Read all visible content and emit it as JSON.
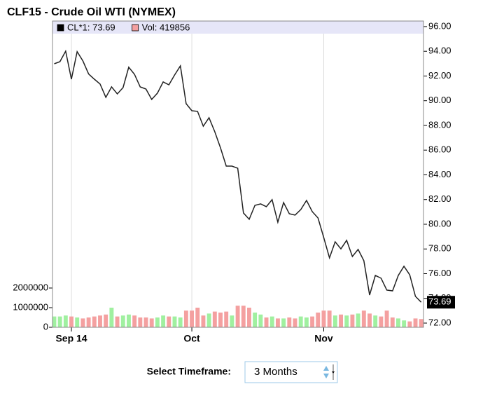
{
  "chart_data": {
    "type": "line",
    "title": "CLF15 - Crude Oil WTI (NYMEX)",
    "x": [
      0,
      1,
      2,
      3,
      4,
      5,
      6,
      7,
      8,
      9,
      10,
      11,
      12,
      13,
      14,
      15,
      16,
      17,
      18,
      19,
      20,
      21,
      22,
      23,
      24,
      25,
      26,
      27,
      28,
      29,
      30,
      31,
      32,
      33,
      34,
      35,
      36,
      37,
      38,
      39,
      40,
      41,
      42,
      43,
      44,
      45,
      46,
      47,
      48,
      49,
      50,
      51,
      52,
      53,
      54,
      55,
      56,
      57,
      58,
      59,
      60,
      61,
      62,
      63,
      64
    ],
    "xlim": [
      -0.3,
      64.4
    ],
    "xticks": [
      {
        "value": 3,
        "label": "Sep 14"
      },
      {
        "value": 24,
        "label": "Oct"
      },
      {
        "value": 47,
        "label": "Nov"
      }
    ],
    "ylim": [
      71.66,
      96.45
    ],
    "yticks": [
      {
        "value": 72,
        "label": "72.00"
      },
      {
        "value": 74,
        "label": "74.00"
      },
      {
        "value": 76,
        "label": "76.00"
      },
      {
        "value": 78,
        "label": "78.00"
      },
      {
        "value": 80,
        "label": "80.00"
      },
      {
        "value": 82,
        "label": "82.00"
      },
      {
        "value": 84,
        "label": "84.00"
      },
      {
        "value": 86,
        "label": "86.00"
      },
      {
        "value": 88,
        "label": "88.00"
      },
      {
        "value": 90,
        "label": "90.00"
      },
      {
        "value": 92,
        "label": "92.00"
      },
      {
        "value": 94,
        "label": "94.00"
      },
      {
        "value": 96,
        "label": "96.00"
      }
    ],
    "y2lim": [
      0,
      15600000
    ],
    "y2ticks": [
      0,
      1000000,
      2000000
    ],
    "y_marker": {
      "value": 73.69,
      "label": "73.69"
    },
    "grid": "x",
    "series": [
      {
        "name": "CL*1: 73.69",
        "color": "#222222",
        "legend_color": "#000000",
        "values": [
          92.99,
          93.16,
          94.01,
          91.74,
          93.97,
          93.22,
          92.16,
          91.74,
          91.35,
          90.27,
          91.12,
          90.55,
          91.06,
          92.71,
          92.14,
          91.12,
          90.95,
          90.1,
          90.61,
          91.52,
          91.29,
          92.09,
          92.82,
          89.76,
          89.19,
          89.14,
          87.94,
          88.62,
          87.49,
          86.18,
          84.71,
          84.71,
          84.54,
          80.91,
          80.4,
          81.53,
          81.65,
          81.42,
          81.99,
          80.17,
          81.76,
          80.85,
          80.74,
          81.19,
          81.93,
          81.02,
          80.51,
          78.92,
          77.28,
          78.58,
          78.01,
          78.7,
          77.39,
          77.96,
          77.05,
          74.27,
          75.86,
          75.63,
          74.67,
          74.61,
          75.86,
          76.6,
          75.91,
          74.16,
          73.69
        ]
      },
      {
        "name": "Vol: 419856",
        "type": "bar",
        "axis": "y2",
        "color": "#f4a0a0",
        "up_color": "#a0f0a0",
        "values": [
          550000,
          550000,
          600000,
          550000,
          500000,
          450000,
          500000,
          550000,
          600000,
          650000,
          1000000,
          550000,
          600000,
          650000,
          600000,
          500000,
          500000,
          450000,
          500000,
          600000,
          550000,
          550000,
          500000,
          850000,
          850000,
          1000000,
          600000,
          700000,
          800000,
          750000,
          800000,
          600000,
          1100000,
          1100000,
          1000000,
          750000,
          650000,
          500000,
          550000,
          450000,
          450000,
          500000,
          450000,
          550000,
          500000,
          550000,
          750000,
          850000,
          850000,
          600000,
          650000,
          600000,
          650000,
          700000,
          850000,
          700000,
          600000,
          550000,
          850000,
          500000,
          450000,
          350000,
          300000,
          450000,
          419856
        ]
      }
    ]
  },
  "controls": {
    "label": "Select Timeframe:",
    "selected": "3 Months"
  }
}
